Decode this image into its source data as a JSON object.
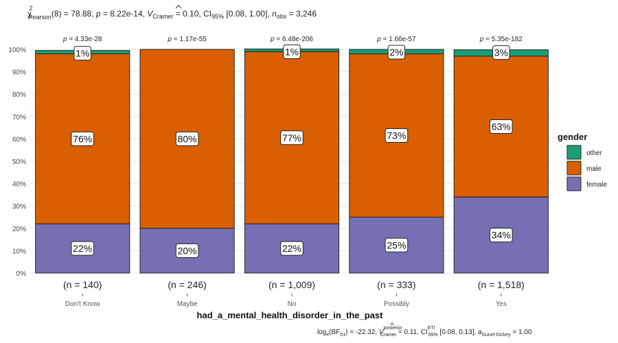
{
  "chart_data": {
    "type": "bar",
    "stacked": true,
    "percent": true,
    "subtitle_parts": {
      "chi": "χ",
      "chi_sup": "2",
      "chi_sub": "Pearson",
      "stat": "(8) = 78.88, ",
      "p_label": "p",
      "p_value": " = 8.22e-14, ",
      "v_label": "V",
      "v_sub": "Cramer",
      "v_value": " = 0.10, ",
      "ci_label": "CI",
      "ci_sub": "95%",
      "ci_value": " [0.08, 1.00], ",
      "n_label": "n",
      "n_sub": "obs",
      "n_value": " = 3,246"
    },
    "caption_parts": {
      "log": "log",
      "log_sub": "e",
      "bf": "(BF",
      "bf_sub": "01",
      "bf_value": ") = -22.32, ",
      "v_label": "V",
      "v_sup": "posterior",
      "v_sub": "Cramer",
      "v_value": " = 0.11, ",
      "ci_label": "CI",
      "ci_sup": "ETI",
      "ci_sub": "95%",
      "ci_value": " [0.08, 0.13], ",
      "a_label": "a",
      "a_sub": "Gunel-Dickey",
      "a_value": " = 1.00"
    },
    "xlabel": "had_a_mental_health_disorder_in_the_past",
    "ylabel": "",
    "ylim": [
      0,
      100
    ],
    "yticks": [
      "0%",
      "10%",
      "20%",
      "30%",
      "40%",
      "50%",
      "60%",
      "70%",
      "80%",
      "90%",
      "100%"
    ],
    "categories": [
      "Don't Know",
      "Maybe",
      "No",
      "Possibly",
      "Yes"
    ],
    "counts": [
      "(n = 140)",
      "(n = 246)",
      "(n = 1,009)",
      "(n = 333)",
      "(n = 1,518)"
    ],
    "p_values": [
      "p = 4.33e-28",
      "p = 1.17e-55",
      "p = 6.48e-206",
      "p = 1.66e-57",
      "p = 5.35e-182"
    ],
    "series": [
      {
        "name": "female",
        "color": "#7570B3",
        "values": [
          22,
          20,
          22,
          25,
          34
        ],
        "labels": [
          "22%",
          "20%",
          "22%",
          "25%",
          "34%"
        ]
      },
      {
        "name": "male",
        "color": "#D95F02",
        "values": [
          76,
          80,
          77,
          73,
          63
        ],
        "labels": [
          "76%",
          "80%",
          "77%",
          "73%",
          "63%"
        ]
      },
      {
        "name": "other",
        "color": "#1B9E77",
        "values": [
          1.5,
          0,
          1.2,
          2,
          2.8
        ],
        "labels": [
          "1%",
          "",
          "1%",
          "2%",
          "3%"
        ]
      }
    ],
    "legend": {
      "title": "gender",
      "position": "right",
      "items": [
        "other",
        "male",
        "female"
      ]
    },
    "grid": true
  }
}
